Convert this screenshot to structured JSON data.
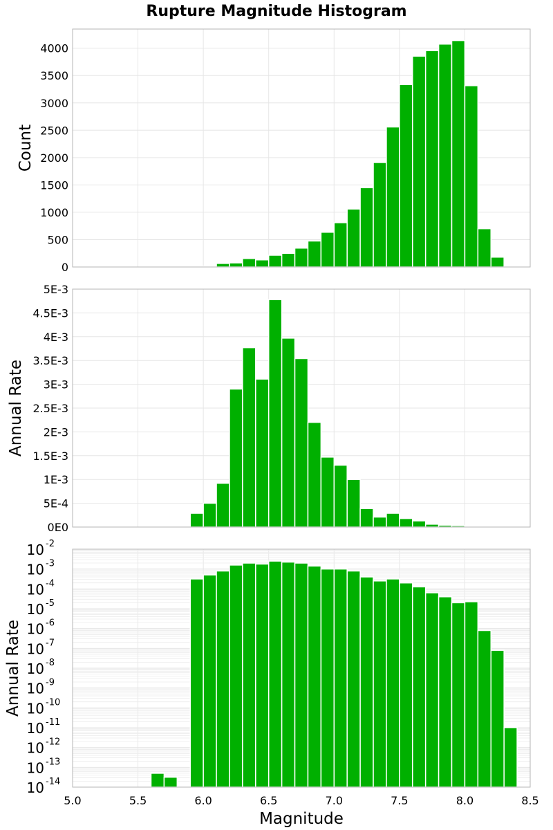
{
  "page_title": "Rupture Magnitude Histogram",
  "chart_data": [
    {
      "type": "bar",
      "panel": "count",
      "ylabel": "Count",
      "xlim": [
        5.0,
        8.5
      ],
      "ylim": [
        0,
        4350
      ],
      "bin_width": 0.1,
      "x": [
        5.6,
        5.7,
        5.9,
        6.0,
        6.1,
        6.2,
        6.3,
        6.4,
        6.5,
        6.6,
        6.7,
        6.8,
        6.9,
        7.0,
        7.1,
        7.2,
        7.3,
        7.4,
        7.5,
        7.6,
        7.7,
        7.8,
        7.9,
        8.0,
        8.1,
        8.2,
        8.3
      ],
      "values": [
        3,
        3,
        10,
        15,
        65,
        75,
        155,
        130,
        215,
        250,
        345,
        475,
        635,
        810,
        1060,
        1450,
        1910,
        2560,
        3335,
        3855,
        3955,
        4075,
        4140,
        3315,
        700,
        180,
        5
      ],
      "yticks": [
        0,
        500,
        1000,
        1500,
        2000,
        2500,
        3000,
        3500,
        4000
      ],
      "ytick_labels": [
        "0",
        "500",
        "1000",
        "1500",
        "2000",
        "2500",
        "3000",
        "3500",
        "4000"
      ]
    },
    {
      "type": "bar",
      "panel": "rate",
      "ylabel": "Annual Rate",
      "xlim": [
        5.0,
        8.5
      ],
      "ylim": [
        0,
        0.005
      ],
      "bin_width": 0.1,
      "x": [
        5.9,
        6.0,
        6.1,
        6.2,
        6.3,
        6.4,
        6.5,
        6.6,
        6.7,
        6.8,
        6.9,
        7.0,
        7.1,
        7.2,
        7.3,
        7.4,
        7.5,
        7.6,
        7.7,
        7.8,
        7.9,
        8.0
      ],
      "values": [
        0.00029,
        0.0005,
        0.00092,
        0.0029,
        0.00377,
        0.00311,
        0.00478,
        0.00397,
        0.00354,
        0.0022,
        0.00147,
        0.0013,
        0.001,
        0.00039,
        0.00021,
        0.00029,
        0.00018,
        0.00013,
        6e-05,
        4e-05,
        3e-05,
        2e-05
      ],
      "yticks": [
        0,
        0.0005,
        0.001,
        0.0015,
        0.002,
        0.0025,
        0.003,
        0.0035,
        0.004,
        0.0045,
        0.005
      ],
      "ytick_labels": [
        "0E0",
        "5E-4",
        "1E-3",
        "1.5E-3",
        "2E-3",
        "2.5E-3",
        "3E-3",
        "3.5E-3",
        "4E-3",
        "4.5E-3",
        "5E-3"
      ]
    },
    {
      "type": "bar",
      "panel": "log-rate",
      "ylabel": "Annual Rate",
      "xlabel": "Magnitude",
      "yscale": "log",
      "xlim": [
        5.0,
        8.5
      ],
      "ylim_exponent": [
        -14,
        -2
      ],
      "bin_width": 0.1,
      "x": [
        5.6,
        5.7,
        5.9,
        6.0,
        6.1,
        6.2,
        6.3,
        6.4,
        6.5,
        6.6,
        6.7,
        6.8,
        6.9,
        7.0,
        7.1,
        7.2,
        7.3,
        7.4,
        7.5,
        7.6,
        7.7,
        7.8,
        7.9,
        8.0,
        8.1,
        8.2,
        8.3
      ],
      "log10_values": [
        -13.3,
        -13.5,
        -3.5,
        -3.3,
        -3.1,
        -2.8,
        -2.7,
        -2.75,
        -2.6,
        -2.65,
        -2.7,
        -2.85,
        -3.0,
        -3.0,
        -3.1,
        -3.4,
        -3.6,
        -3.5,
        -3.7,
        -3.9,
        -4.2,
        -4.4,
        -4.7,
        -4.65,
        -6.1,
        -7.1,
        -11.0
      ],
      "ytick_base": "10",
      "ytick_exponents": [
        "-14",
        "-13",
        "-12",
        "-11",
        "-10",
        "-9",
        "-8",
        "-7",
        "-6",
        "-5",
        "-4",
        "-3",
        "-2"
      ],
      "xticks": [
        5.0,
        5.5,
        6.0,
        6.5,
        7.0,
        7.5,
        8.0,
        8.5
      ],
      "xtick_labels": [
        "5.0",
        "5.5",
        "6.0",
        "6.5",
        "7.0",
        "7.5",
        "8.0",
        "8.5"
      ]
    }
  ]
}
